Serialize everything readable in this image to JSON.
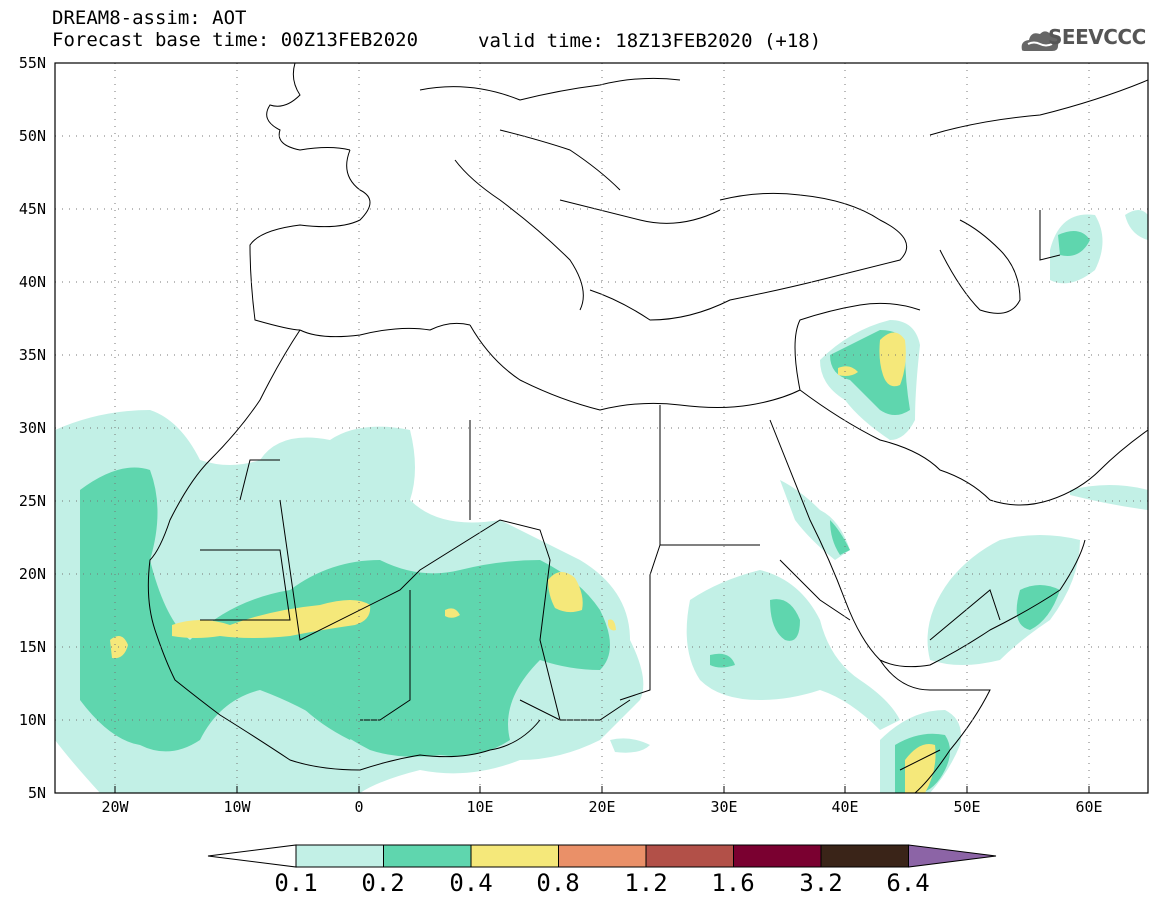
{
  "header": {
    "title": "DREAM8-assim: AOT",
    "forecast_base": "Forecast base time: 00Z13FEB2020",
    "valid": "valid time: 18Z13FEB2020 (+18)"
  },
  "logo": {
    "text": "SEEVCCC",
    "icon": "cloud-icon"
  },
  "map": {
    "variable": "AOT",
    "lat_labels": [
      "55N",
      "50N",
      "45N",
      "40N",
      "35N",
      "30N",
      "25N",
      "20N",
      "15N",
      "10N",
      "5N"
    ],
    "lon_labels": [
      "20W",
      "10W",
      "0",
      "10E",
      "20E",
      "30E",
      "40E",
      "50E",
      "60E"
    ],
    "lon_range": [
      -25,
      65
    ],
    "lat_range": [
      5,
      55
    ],
    "grid": "dotted"
  },
  "colorbar": {
    "labels": [
      "0.1",
      "0.2",
      "0.4",
      "0.8",
      "1.2",
      "1.6",
      "3.2",
      "6.4"
    ],
    "colors": [
      "#ffffff",
      "#c2f0e6",
      "#5fd6ae",
      "#f5e87a",
      "#ea9068",
      "#b25048",
      "#7a0030",
      "#3a2418",
      "#8c64a6"
    ]
  }
}
